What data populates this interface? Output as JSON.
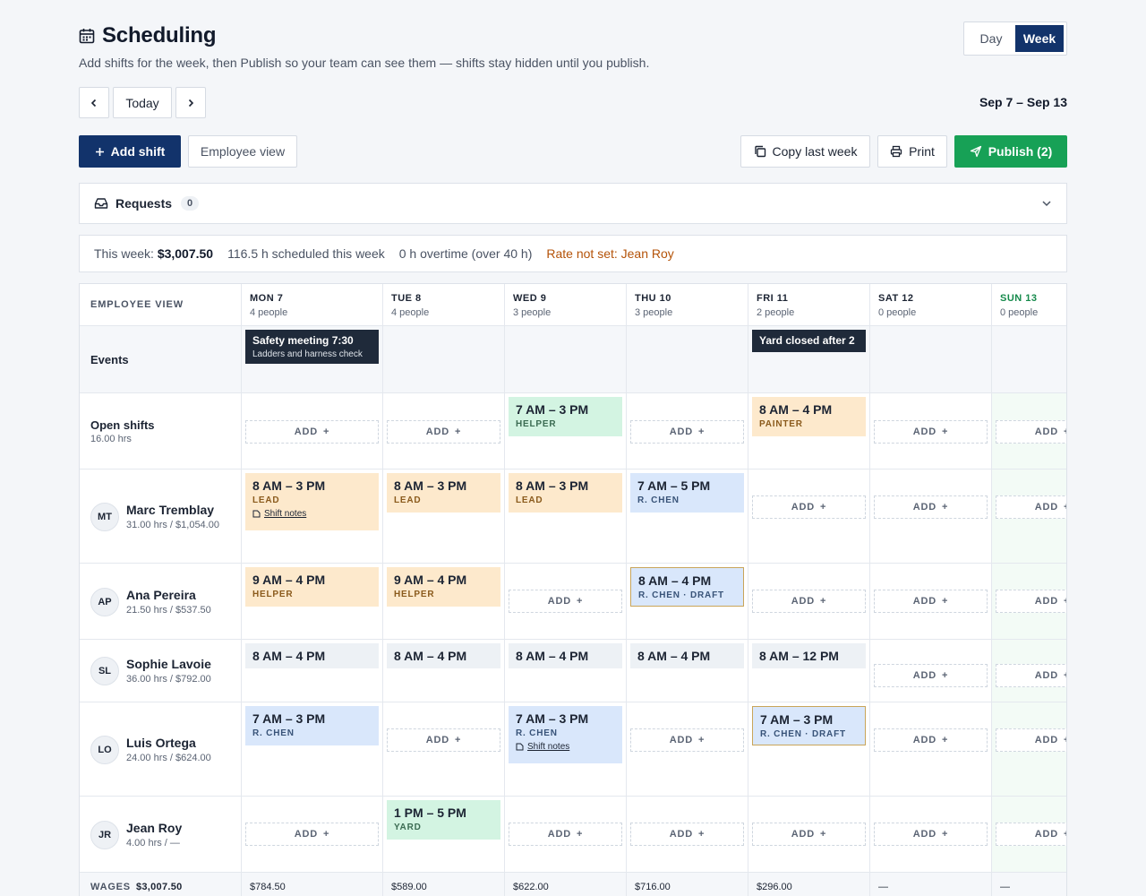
{
  "header": {
    "title": "Scheduling",
    "subtitle": "Add shifts for the week, then Publish so your team can see them — shifts stay hidden until you publish.",
    "icon": "calendar-icon"
  },
  "view_toggle": {
    "day": "Day",
    "week": "Week",
    "active": "Week"
  },
  "nav": {
    "today": "Today",
    "date_range": "Sep 7 – Sep 13"
  },
  "toolbar": {
    "add_shift": "Add shift",
    "employee_view": "Employee view",
    "copy_last_week": "Copy last week",
    "print": "Print",
    "publish": "Publish (2)"
  },
  "requests": {
    "label": "Requests",
    "count": "0"
  },
  "summary": {
    "week_label": "This week:",
    "week_total": "$3,007.50",
    "scheduled": "116.5 h scheduled this week",
    "overtime": "0 h overtime (over 40 h)",
    "warning": "Rate not set: Jean Roy"
  },
  "grid": {
    "corner_label": "EMPLOYEE VIEW",
    "days": [
      {
        "name": "MON 7",
        "count": "4 people"
      },
      {
        "name": "TUE 8",
        "count": "4 people"
      },
      {
        "name": "WED 9",
        "count": "3 people"
      },
      {
        "name": "THU 10",
        "count": "3 people"
      },
      {
        "name": "FRI 11",
        "count": "2 people"
      },
      {
        "name": "SAT 12",
        "count": "0 people"
      },
      {
        "name": "SUN 13",
        "count": "0 people"
      }
    ],
    "events_label": "Events",
    "events": {
      "mon": {
        "title": "Safety meeting 7:30",
        "sub": "Ladders and harness check"
      },
      "fri": {
        "title": "Yard closed after 2"
      }
    },
    "open_shifts": {
      "label": "Open shifts",
      "hours": "16.00 hrs"
    },
    "add_label": "ADD",
    "shifts": {
      "open_wed": {
        "time": "7 AM – 3 PM",
        "role": "HELPER"
      },
      "open_fri": {
        "time": "8 AM – 4 PM",
        "role": "PAINTER"
      },
      "mt_mon": {
        "time": "8 AM – 3 PM",
        "role": "LEAD",
        "notes": "Shift notes"
      },
      "mt_tue": {
        "time": "8 AM – 3 PM",
        "role": "LEAD"
      },
      "mt_wed": {
        "time": "8 AM – 3 PM",
        "role": "LEAD"
      },
      "mt_thu": {
        "time": "7 AM – 5 PM",
        "role": "R. CHEN"
      },
      "ap_mon": {
        "time": "9 AM – 4 PM",
        "role": "HELPER"
      },
      "ap_tue": {
        "time": "9 AM – 4 PM",
        "role": "HELPER"
      },
      "ap_thu": {
        "time": "8 AM – 4 PM",
        "role": "R. CHEN · DRAFT"
      },
      "sl_mon": {
        "time": "8 AM – 4 PM"
      },
      "sl_tue": {
        "time": "8 AM – 4 PM"
      },
      "sl_wed": {
        "time": "8 AM – 4 PM"
      },
      "sl_thu": {
        "time": "8 AM – 4 PM"
      },
      "sl_fri": {
        "time": "8 AM – 12 PM"
      },
      "lo_mon": {
        "time": "7 AM – 3 PM",
        "role": "R. CHEN"
      },
      "lo_wed": {
        "time": "7 AM – 3 PM",
        "role": "R. CHEN",
        "notes": "Shift notes"
      },
      "lo_fri": {
        "time": "7 AM – 3 PM",
        "role": "R. CHEN · DRAFT"
      },
      "jr_tue": {
        "time": "1 PM – 5 PM",
        "role": "YARD"
      }
    },
    "employees": [
      {
        "initials": "MT",
        "name": "Marc Tremblay",
        "sub": "31.00 hrs / $1,054.00"
      },
      {
        "initials": "AP",
        "name": "Ana Pereira",
        "sub": "21.50 hrs / $537.50"
      },
      {
        "initials": "SL",
        "name": "Sophie Lavoie",
        "sub": "36.00 hrs / $792.00"
      },
      {
        "initials": "LO",
        "name": "Luis Ortega",
        "sub": "24.00 hrs / $624.00"
      },
      {
        "initials": "JR",
        "name": "Jean Roy",
        "sub": "4.00 hrs / —"
      }
    ],
    "wages": {
      "label": "WAGES",
      "total": "$3,007.50",
      "values": [
        "$784.50",
        "$589.00",
        "$622.00",
        "$716.00",
        "$296.00",
        "—",
        "—"
      ]
    }
  },
  "colors": {
    "primary": "#12336b",
    "publish": "#17a156",
    "warning": "#b45309",
    "lead_shift": "#fde9cc",
    "chen_shift": "#d9e7fb",
    "open_shift": "#d3f4e2",
    "event": "#1f2a3a"
  }
}
